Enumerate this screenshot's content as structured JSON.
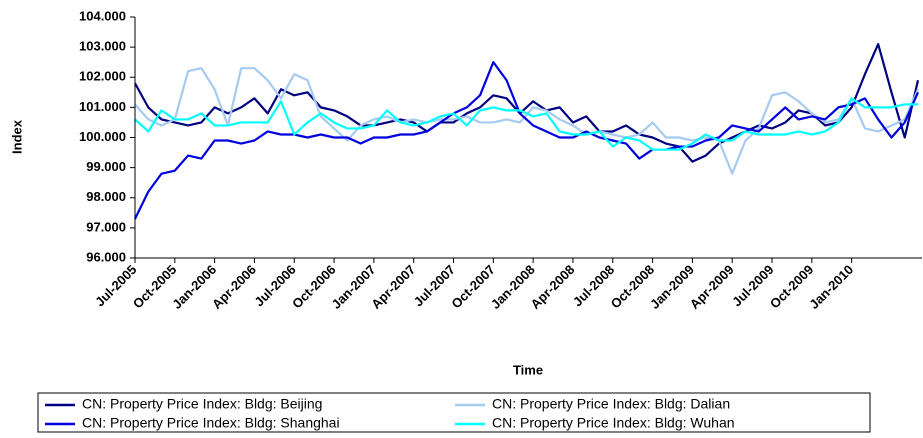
{
  "chart_data": {
    "type": "line",
    "xlabel": "Time",
    "ylabel": "Index",
    "categories": [
      "Jul-2005",
      null,
      null,
      "Oct-2005",
      null,
      null,
      "Jan-2006",
      null,
      null,
      "Apr-2006",
      null,
      null,
      "Jul-2006",
      null,
      null,
      "Oct-2006",
      null,
      null,
      "Jan-2007",
      null,
      null,
      "Apr-2007",
      null,
      null,
      "Jul-2007",
      null,
      null,
      "Oct-2007",
      null,
      null,
      "Jan-2008",
      null,
      null,
      "Apr-2008",
      null,
      null,
      "Jul-2008",
      null,
      null,
      "Oct-2008",
      null,
      null,
      "Jan-2009",
      null,
      null,
      "Apr-2009",
      null,
      null,
      "Jul-2009",
      null,
      null,
      "Oct-2009",
      null,
      null,
      "Jan-2010",
      null,
      null,
      null,
      null,
      null
    ],
    "ylim": [
      96,
      104
    ],
    "yticks": [
      {
        "value": 96,
        "label": "96.000"
      },
      {
        "value": 97,
        "label": "97.000"
      },
      {
        "value": 98,
        "label": "98.000"
      },
      {
        "value": 99,
        "label": "99.000"
      },
      {
        "value": 100,
        "label": "100.000"
      },
      {
        "value": 101,
        "label": "101.000"
      },
      {
        "value": 102,
        "label": "102.000"
      },
      {
        "value": 103,
        "label": "103.000"
      },
      {
        "value": 104,
        "label": "104.000"
      }
    ],
    "grid": false,
    "legend": "bottom",
    "series": [
      {
        "name": "CN: Property Price Index: Bldg: Beijing",
        "color": "#000080",
        "values": [
          101.8,
          101.0,
          100.6,
          100.5,
          100.4,
          100.5,
          101.0,
          100.8,
          101.0,
          101.3,
          100.8,
          101.6,
          101.4,
          101.5,
          101.0,
          100.9,
          100.7,
          100.4,
          100.4,
          100.5,
          100.6,
          100.5,
          100.2,
          100.5,
          100.5,
          100.8,
          101.0,
          101.4,
          101.3,
          100.8,
          101.2,
          100.9,
          101.0,
          100.5,
          100.7,
          100.2,
          100.2,
          100.4,
          100.1,
          100.0,
          99.8,
          99.7,
          99.2,
          99.4,
          99.8,
          100.0,
          100.2,
          100.4,
          100.3,
          100.5,
          100.9,
          100.8,
          100.4,
          100.5,
          101.0,
          102.1,
          103.1,
          101.5,
          100.0,
          101.9
        ]
      },
      {
        "name": "CN: Property Price Index: Bldg: Dalian",
        "color": "#a6caf0",
        "values": [
          101.1,
          100.6,
          100.4,
          100.6,
          102.2,
          102.3,
          101.6,
          100.4,
          102.3,
          102.3,
          101.9,
          101.3,
          102.1,
          101.9,
          100.7,
          100.3,
          99.9,
          100.4,
          100.6,
          100.7,
          100.5,
          100.6,
          100.5,
          100.6,
          100.6,
          100.7,
          100.5,
          100.5,
          100.6,
          100.5,
          101.0,
          100.9,
          100.6,
          100.4,
          100.1,
          100.2,
          100.1,
          100.0,
          100.1,
          100.5,
          100.0,
          100.0,
          99.9,
          100.0,
          99.9,
          98.8,
          99.9,
          100.3,
          101.4,
          101.5,
          101.2,
          100.8,
          100.5,
          100.6,
          101.3,
          100.3,
          100.2,
          100.4,
          100.6,
          101.6
        ]
      },
      {
        "name": "CN: Property Price Index: Bldg: Shanghai",
        "color": "#0000e0",
        "values": [
          97.3,
          98.2,
          98.8,
          98.9,
          99.4,
          99.3,
          99.9,
          99.9,
          99.8,
          99.9,
          100.2,
          100.1,
          100.1,
          100.0,
          100.1,
          100.0,
          100.0,
          99.8,
          100.0,
          100.0,
          100.1,
          100.1,
          100.2,
          100.5,
          100.8,
          101.0,
          101.4,
          102.5,
          101.9,
          100.8,
          100.4,
          100.2,
          100.0,
          100.0,
          100.2,
          100.0,
          99.9,
          99.8,
          99.3,
          99.6,
          99.6,
          99.7,
          99.7,
          99.9,
          100.0,
          100.4,
          100.3,
          100.2,
          100.6,
          101.0,
          100.6,
          100.7,
          100.6,
          101.0,
          101.1,
          101.3,
          100.6,
          100.0,
          100.5,
          101.5
        ]
      },
      {
        "name": "CN: Property Price Index: Bldg: Wuhan",
        "color": "#00ffff",
        "values": [
          100.6,
          100.2,
          100.9,
          100.6,
          100.6,
          100.8,
          100.4,
          100.4,
          100.5,
          100.5,
          100.5,
          101.2,
          100.1,
          100.5,
          100.8,
          100.5,
          100.3,
          100.3,
          100.4,
          100.9,
          100.5,
          100.4,
          100.5,
          100.7,
          100.8,
          100.4,
          100.9,
          101.0,
          100.9,
          100.9,
          100.7,
          100.8,
          100.2,
          100.1,
          100.1,
          100.2,
          99.7,
          100.0,
          99.9,
          99.6,
          99.6,
          99.6,
          99.8,
          100.1,
          99.9,
          99.9,
          100.2,
          100.1,
          100.1,
          100.1,
          100.2,
          100.1,
          100.2,
          100.5,
          101.3,
          101.0,
          101.0,
          101.0,
          101.1,
          101.1
        ]
      }
    ]
  }
}
